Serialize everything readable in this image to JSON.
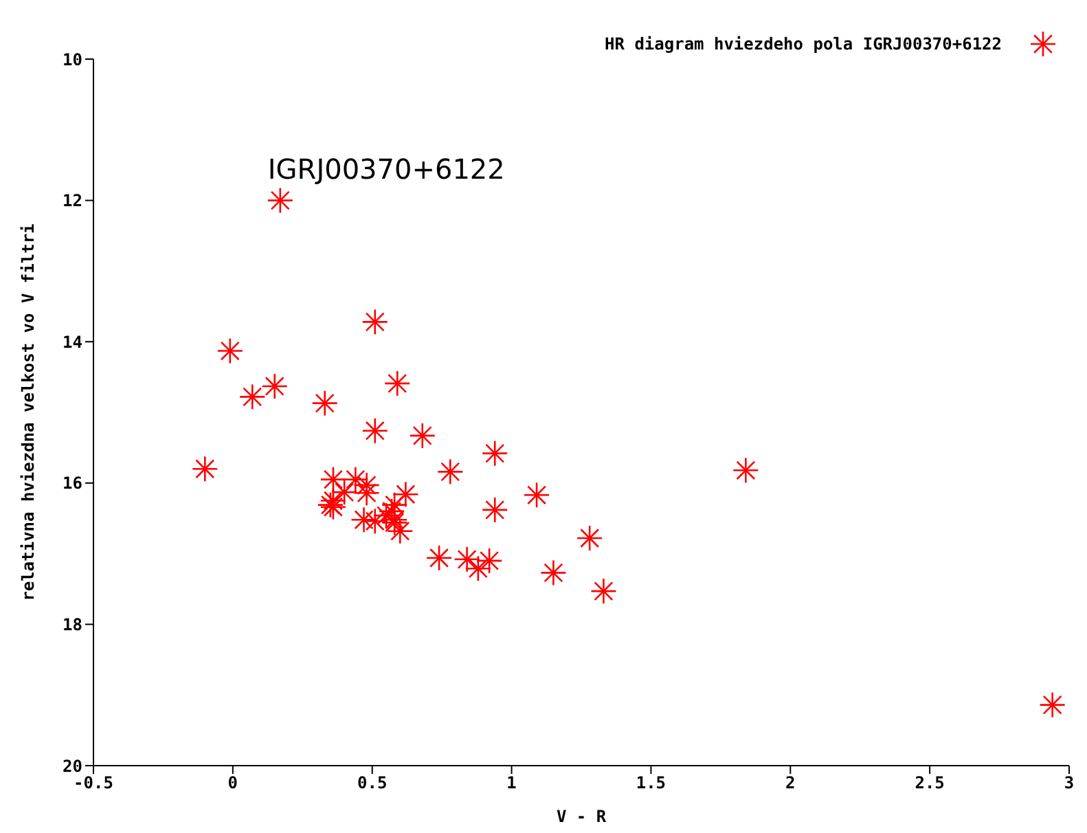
{
  "chart_data": {
    "type": "scatter",
    "xlabel": "V - R",
    "ylabel": "relativna hviezdna velkost vo V filtri",
    "xlim": [
      -0.5,
      3
    ],
    "xticks": [
      -0.5,
      0,
      0.5,
      1,
      1.5,
      2,
      2.5,
      3
    ],
    "ylim": [
      20,
      10
    ],
    "yticks": [
      10,
      12,
      14,
      16,
      18,
      20
    ],
    "grid": false,
    "legend": "top right",
    "marker": "cross",
    "annotations": [
      {
        "text": "IGRJ00370+6122",
        "x": 0.17,
        "y": 12.0
      }
    ],
    "series": [
      {
        "name": "HR diagram hviezdeho pola IGRJ00370+6122",
        "color": "#ff0000",
        "x": [
          0.17,
          -0.01,
          0.07,
          0.15,
          0.33,
          0.51,
          0.59,
          -0.1,
          0.51,
          0.68,
          0.78,
          0.94,
          0.94,
          1.09,
          1.84,
          1.28,
          1.15,
          1.33,
          0.74,
          0.84,
          0.88,
          0.92,
          2.94,
          0.36,
          0.44,
          0.48,
          0.48,
          0.4,
          0.36,
          0.35,
          0.36,
          0.62,
          0.58,
          0.57,
          0.55,
          0.58,
          0.47,
          0.51,
          0.6,
          0.58
        ],
        "values": [
          12.0,
          14.13,
          14.78,
          14.63,
          14.87,
          13.72,
          14.59,
          15.8,
          15.26,
          15.33,
          15.84,
          15.58,
          16.38,
          16.17,
          15.82,
          16.78,
          17.27,
          17.53,
          17.06,
          17.08,
          17.21,
          17.1,
          19.14,
          15.95,
          15.95,
          16.03,
          16.14,
          16.13,
          16.25,
          16.31,
          16.34,
          16.16,
          16.31,
          16.4,
          16.46,
          16.52,
          16.52,
          16.54,
          16.68,
          16.56
        ]
      }
    ]
  }
}
